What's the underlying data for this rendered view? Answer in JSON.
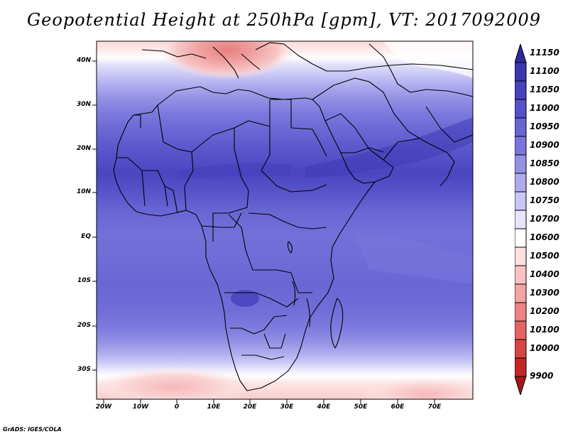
{
  "title": "Geopotential Height at 250hPa [gpm], VT: 2017092009",
  "credit": "GrADS: IGES/COLA",
  "map": {
    "latitude_labels": [
      "40N",
      "30N",
      "20N",
      "10N",
      "EQ",
      "10S",
      "20S",
      "30S"
    ],
    "longitude_labels": [
      "20W",
      "10W",
      "0",
      "10E",
      "20E",
      "30E",
      "40E",
      "50E",
      "60E",
      "70E"
    ],
    "boundary_color": "#000000"
  },
  "colorbar": {
    "labels": [
      "11150",
      "11100",
      "11050",
      "11000",
      "10950",
      "10900",
      "10850",
      "10800",
      "10750",
      "10700",
      "10600",
      "10500",
      "10400",
      "10300",
      "10200",
      "10100",
      "10000",
      "9900"
    ],
    "colors": [
      "#2e2a9e",
      "#3a36b0",
      "#4641bd",
      "#5551c8",
      "#6865d2",
      "#7a77dc",
      "#9491e5",
      "#aeabee",
      "#c8c6f5",
      "#e6e5fb",
      "#ffffff",
      "#fde0e0",
      "#f9c3c3",
      "#f4a4a4",
      "#ec8484",
      "#e46464",
      "#d94444",
      "#c42626",
      "#a31717"
    ]
  }
}
